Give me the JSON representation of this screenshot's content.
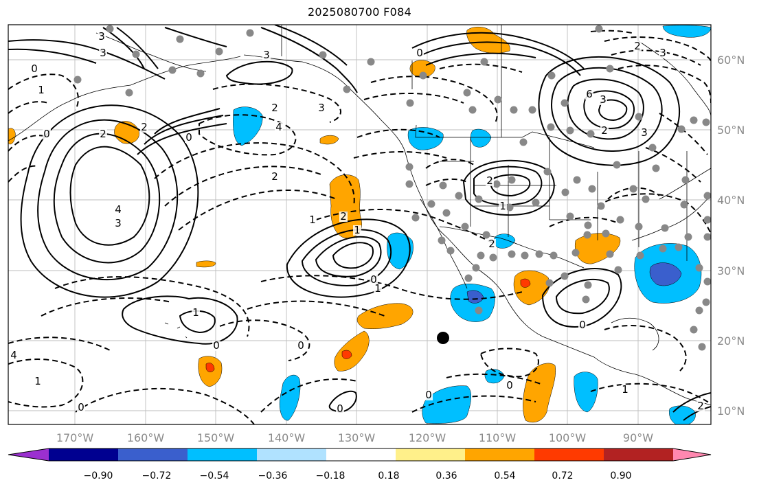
{
  "title": "2025080700 F084",
  "map": {
    "lon_labels": [
      "170°W",
      "160°W",
      "150°W",
      "140°W",
      "130°W",
      "120°W",
      "110°W",
      "100°W",
      "90°W"
    ],
    "lat_labels": [
      "60°N",
      "50°N",
      "40°N",
      "30°N",
      "20°N",
      "10°N"
    ],
    "contour_labels": [
      "3",
      "3",
      "0",
      "1",
      "0",
      "2",
      "2",
      "4",
      "3",
      "2",
      "3",
      "3",
      "4",
      "2",
      "0",
      "2",
      "1",
      "1",
      "2",
      "0",
      "2",
      "1",
      "1",
      "0",
      "0",
      "0",
      "0",
      "0",
      "0",
      "1",
      "2",
      "1",
      "4",
      "6",
      "3",
      "2",
      "3",
      "3",
      "2",
      "0",
      "1",
      "0"
    ],
    "grid": true,
    "marker": "black-dot"
  },
  "colorbar": {
    "colors": [
      "#9b30d0",
      "#000090",
      "#3a5fcd",
      "#00bfff",
      "#b0e2ff",
      "#ffffff",
      "#fff08a",
      "#ffa500",
      "#ff3a00",
      "#b22222",
      "#ff88b0"
    ],
    "tick_labels": [
      "−0.90",
      "−0.72",
      "−0.54",
      "−0.36",
      "−0.18",
      "0.18",
      "0.36",
      "0.54",
      "0.72",
      "0.90"
    ]
  }
}
